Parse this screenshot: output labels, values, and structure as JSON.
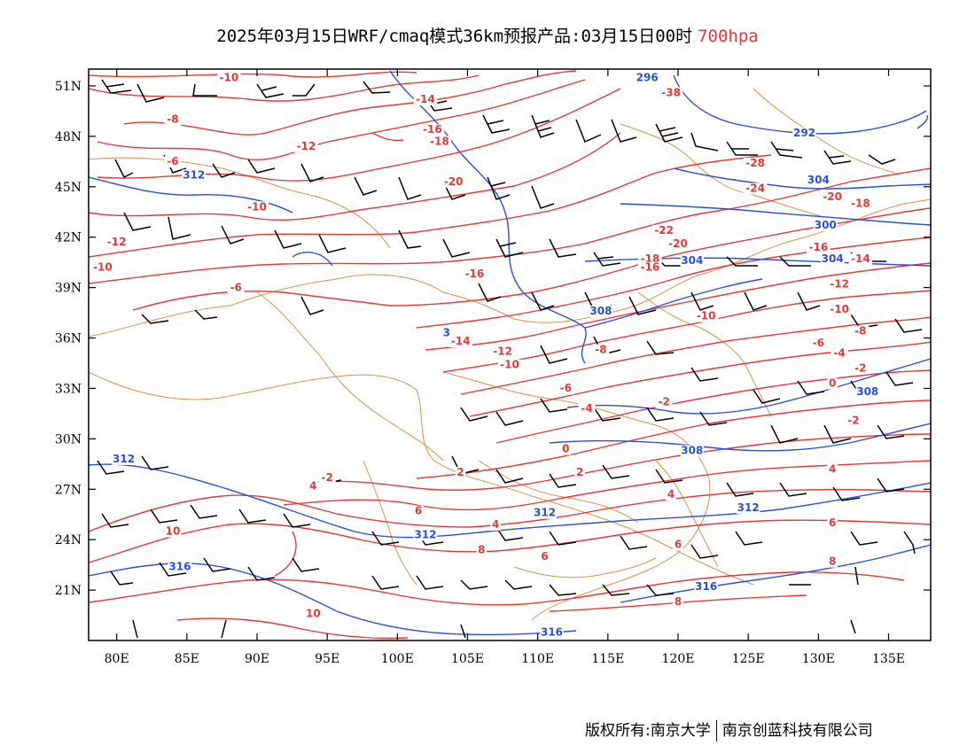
{
  "title": {
    "main": "2025年03月15日WRF/cmaq模式36km预报产品:03月15日00时",
    "level": "700hpa"
  },
  "map": {
    "lon_range": [
      78,
      138
    ],
    "lat_range": [
      18,
      52
    ],
    "lon_ticks": [
      "80E",
      "85E",
      "90E",
      "95E",
      "100E",
      "105E",
      "110E",
      "115E",
      "120E",
      "125E",
      "130E",
      "135E"
    ],
    "lat_ticks": [
      "51N",
      "48N",
      "45N",
      "42N",
      "39N",
      "36N",
      "33N",
      "30N",
      "27N",
      "24N",
      "21N"
    ],
    "colors": {
      "temperature": "#e23a3a",
      "geopotential": "#2a4fd8",
      "boundary": "#d9904a",
      "wind": "#000000"
    },
    "temperature_labels": [
      {
        "text": "-10",
        "lon": 88,
        "lat": 51.3
      },
      {
        "text": "-14",
        "lon": 102,
        "lat": 50
      },
      {
        "text": "-16",
        "lon": 102.5,
        "lat": 48.2
      },
      {
        "text": "-18",
        "lon": 103,
        "lat": 47.5
      },
      {
        "text": "-8",
        "lon": 84,
        "lat": 48.8
      },
      {
        "text": "-12",
        "lon": 93.5,
        "lat": 47.2
      },
      {
        "text": "-6",
        "lon": 84,
        "lat": 46.3
      },
      {
        "text": "-10",
        "lon": 90,
        "lat": 43.6
      },
      {
        "text": "-12",
        "lon": 80,
        "lat": 41.5
      },
      {
        "text": "-10",
        "lon": 79,
        "lat": 40
      },
      {
        "text": "-6",
        "lon": 88.5,
        "lat": 38.8
      },
      {
        "text": "-20",
        "lon": 104,
        "lat": 45.1
      },
      {
        "text": "-16",
        "lon": 105.5,
        "lat": 39.6
      },
      {
        "text": "-14",
        "lon": 104.5,
        "lat": 35.6
      },
      {
        "text": "-12",
        "lon": 107.5,
        "lat": 35
      },
      {
        "text": "-10",
        "lon": 108,
        "lat": 34.2
      },
      {
        "text": "-8",
        "lon": 114.5,
        "lat": 35.1
      },
      {
        "text": "-6",
        "lon": 112,
        "lat": 32.8
      },
      {
        "text": "-4",
        "lon": 113.5,
        "lat": 31.6
      },
      {
        "text": "-2",
        "lon": 119,
        "lat": 32
      },
      {
        "text": "0",
        "lon": 112,
        "lat": 29.2
      },
      {
        "text": "2",
        "lon": 113,
        "lat": 27.8
      },
      {
        "text": "-2",
        "lon": 95,
        "lat": 27.5
      },
      {
        "text": "4",
        "lon": 94,
        "lat": 27
      },
      {
        "text": "6",
        "lon": 101.5,
        "lat": 25.5
      },
      {
        "text": "4",
        "lon": 107,
        "lat": 24.7
      },
      {
        "text": "6",
        "lon": 110.5,
        "lat": 22.8
      },
      {
        "text": "6",
        "lon": 120,
        "lat": 23.5
      },
      {
        "text": "8",
        "lon": 106,
        "lat": 23.2
      },
      {
        "text": "8",
        "lon": 120,
        "lat": 20.1
      },
      {
        "text": "10",
        "lon": 84,
        "lat": 24.3
      },
      {
        "text": "10",
        "lon": 94,
        "lat": 19.4
      },
      {
        "text": "4",
        "lon": 119.5,
        "lat": 26.5
      },
      {
        "text": "2",
        "lon": 104.5,
        "lat": 27.8
      },
      {
        "text": "-38",
        "lon": 119.5,
        "lat": 50.4
      },
      {
        "text": "-28",
        "lon": 125.5,
        "lat": 46.2
      },
      {
        "text": "-24",
        "lon": 125.5,
        "lat": 44.7
      },
      {
        "text": "-20",
        "lon": 131,
        "lat": 44.2
      },
      {
        "text": "-18",
        "lon": 133,
        "lat": 43.8
      },
      {
        "text": "-22",
        "lon": 119,
        "lat": 42.2
      },
      {
        "text": "-20",
        "lon": 120,
        "lat": 41.4
      },
      {
        "text": "-18",
        "lon": 118,
        "lat": 40.5
      },
      {
        "text": "-16",
        "lon": 118,
        "lat": 40
      },
      {
        "text": "-16",
        "lon": 130,
        "lat": 41.2
      },
      {
        "text": "-14",
        "lon": 133,
        "lat": 40.5
      },
      {
        "text": "-12",
        "lon": 131.5,
        "lat": 39
      },
      {
        "text": "-10",
        "lon": 131.5,
        "lat": 37.5
      },
      {
        "text": "-10",
        "lon": 122,
        "lat": 37.1
      },
      {
        "text": "-8",
        "lon": 133,
        "lat": 36.2
      },
      {
        "text": "-6",
        "lon": 130,
        "lat": 35.5
      },
      {
        "text": "-4",
        "lon": 131.5,
        "lat": 34.9
      },
      {
        "text": "-2",
        "lon": 133,
        "lat": 34
      },
      {
        "text": "0",
        "lon": 131,
        "lat": 33.1
      },
      {
        "text": "-2",
        "lon": 132.5,
        "lat": 30.9
      },
      {
        "text": "4",
        "lon": 131,
        "lat": 28
      },
      {
        "text": "6",
        "lon": 131,
        "lat": 24.8
      },
      {
        "text": "8",
        "lon": 131,
        "lat": 22.5
      }
    ],
    "geopotential_labels": [
      {
        "text": "312",
        "lon": 85.5,
        "lat": 45.5
      },
      {
        "text": "296",
        "lon": 117.8,
        "lat": 51.3
      },
      {
        "text": "292",
        "lon": 129,
        "lat": 48
      },
      {
        "text": "304",
        "lon": 130,
        "lat": 45.2
      },
      {
        "text": "300",
        "lon": 130.5,
        "lat": 42.5
      },
      {
        "text": "304",
        "lon": 121,
        "lat": 40.4
      },
      {
        "text": "304",
        "lon": 131,
        "lat": 40.5
      },
      {
        "text": "308",
        "lon": 114.5,
        "lat": 37.4
      },
      {
        "text": "308",
        "lon": 133.5,
        "lat": 32.6
      },
      {
        "text": "308",
        "lon": 121,
        "lat": 29.1
      },
      {
        "text": "312",
        "lon": 80.5,
        "lat": 28.6
      },
      {
        "text": "312",
        "lon": 110.5,
        "lat": 25.4
      },
      {
        "text": "312",
        "lon": 102,
        "lat": 24.1
      },
      {
        "text": "312",
        "lon": 125,
        "lat": 25.7
      },
      {
        "text": "316",
        "lon": 84.5,
        "lat": 22.2
      },
      {
        "text": "316",
        "lon": 122,
        "lat": 21
      },
      {
        "text": "316",
        "lon": 111,
        "lat": 18.3
      },
      {
        "text": "3",
        "lon": 103.5,
        "lat": 36.1
      }
    ]
  },
  "credit": {
    "left": "版权所有:南京大学",
    "right": "南京创蓝科技有限公司"
  }
}
